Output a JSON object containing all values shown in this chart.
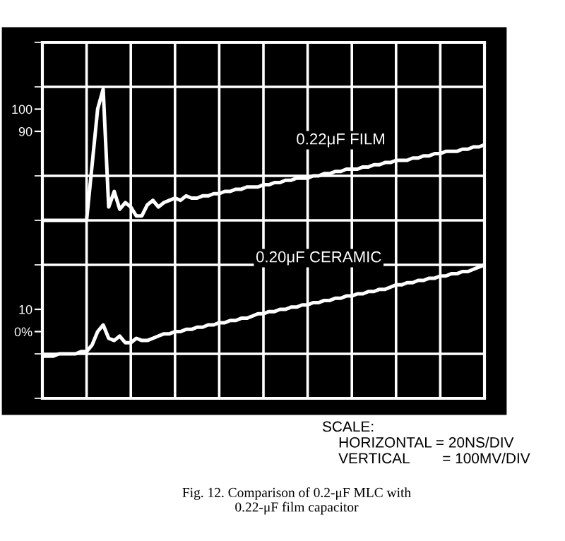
{
  "chart_data": {
    "type": "line",
    "categories": [
      null,
      null,
      null,
      null,
      null,
      null,
      null,
      null,
      null,
      null,
      null,
      null,
      null,
      null,
      null,
      null,
      null,
      null,
      null,
      null,
      null,
      null,
      null,
      null,
      null,
      null,
      null,
      null,
      null,
      null,
      null,
      null,
      null,
      null,
      null,
      null,
      null,
      null,
      null,
      null,
      null,
      null,
      null,
      null,
      null,
      null,
      null,
      null,
      null,
      null,
      null,
      null,
      null,
      null,
      null,
      null,
      null,
      null,
      null,
      null,
      null,
      null,
      null,
      null,
      null,
      null,
      null,
      null,
      null,
      null,
      null,
      null,
      null,
      null,
      null,
      null,
      null,
      null,
      null,
      null,
      null
    ],
    "series": [
      {
        "name": "0.22μF FILM",
        "color": "#ffffff",
        "values": [
          50,
          50,
          50,
          50,
          50,
          50,
          50,
          50,
          50,
          75,
          100,
          109,
          56,
          63,
          55,
          58,
          56,
          52,
          52,
          57,
          59,
          56,
          58,
          59,
          60,
          59,
          61,
          60,
          60,
          61,
          61,
          62,
          62,
          63,
          63,
          64,
          64,
          65,
          65,
          65,
          66,
          66,
          67,
          67,
          68,
          68,
          69,
          69,
          69,
          70,
          70,
          71,
          71,
          72,
          72,
          73,
          73,
          73,
          74,
          74,
          75,
          75,
          76,
          76,
          77,
          77,
          77,
          78,
          78,
          79,
          79,
          80,
          80,
          81,
          81,
          81,
          82,
          82,
          83,
          83,
          84
        ]
      },
      {
        "name": "0.20μF CERAMIC",
        "color": "#ffffff",
        "values": [
          -11,
          -11,
          -11,
          -10,
          -10,
          -10,
          -10,
          -9,
          -9,
          -6,
          0,
          3,
          -3,
          -4,
          -2,
          -5,
          -5,
          -3,
          -4,
          -4,
          -3,
          -2,
          -1,
          -1,
          0,
          0,
          1,
          1,
          2,
          2,
          3,
          3,
          4,
          4,
          5,
          5,
          6,
          6,
          7,
          8,
          8,
          9,
          9,
          10,
          10,
          11,
          11,
          12,
          12,
          13,
          13,
          14,
          14,
          15,
          15,
          16,
          16,
          17,
          17,
          18,
          18,
          19,
          19,
          20,
          21,
          21,
          22,
          22,
          23,
          23,
          24,
          24,
          25,
          25,
          26,
          26,
          27,
          27,
          28,
          29,
          30
        ]
      }
    ],
    "ylim": [
      -30,
      130
    ],
    "yticks": [
      {
        "value": -30,
        "label": null
      },
      {
        "value": -10,
        "label": null
      },
      {
        "value": 0,
        "label": "0%"
      },
      10,
      {
        "value": 30,
        "label": null
      },
      {
        "value": 50,
        "label": null
      },
      {
        "value": 70,
        "label": null
      },
      90,
      100,
      {
        "value": 110,
        "label": null
      },
      {
        "value": 130,
        "label": null
      }
    ],
    "grid": true,
    "legend": false,
    "line_style": "solid",
    "marker": "none",
    "annotations": [
      "SCALE:\n    HORIZONTAL = 20NS/DIV\n    VERTICAL        = 100MV/DIV",
      "Fig. 12. Comparison of 0.2-μF MLC with\n0.22-μF film capacitor"
    ]
  }
}
